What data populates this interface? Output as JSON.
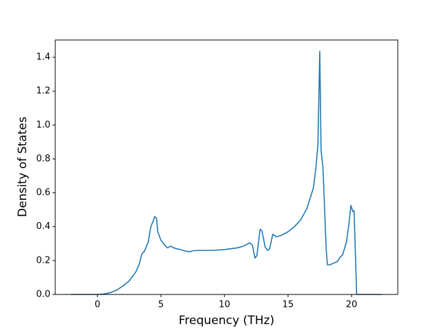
{
  "chart_data": {
    "type": "line",
    "x_label": "Frequency (THz)",
    "y_label": "Density of States",
    "x": [
      -2.1,
      0,
      0.5,
      1,
      1.5,
      2,
      2.5,
      3,
      3.3,
      3.5,
      3.7,
      4.0,
      4.2,
      4.4,
      4.5,
      4.65,
      4.75,
      5.0,
      5.3,
      5.5,
      5.8,
      6.0,
      6.5,
      7.0,
      7.3,
      7.5,
      8,
      9,
      10,
      11,
      11.5,
      12,
      12.2,
      12.4,
      12.55,
      12.8,
      12.95,
      13.2,
      13.4,
      13.55,
      13.8,
      14.1,
      14.5,
      15,
      15.5,
      16,
      16.5,
      17.0,
      17.2,
      17.35,
      17.5,
      17.6,
      17.75,
      18.0,
      18.1,
      18.3,
      18.6,
      18.9,
      19.1,
      19.3,
      19.6,
      19.8,
      19.95,
      20.1,
      20.2,
      20.4,
      21,
      22.4
    ],
    "series": [
      {
        "color": "#1f77b4",
        "values": [
          0,
          0,
          0.003,
          0.01,
          0.025,
          0.05,
          0.08,
          0.13,
          0.18,
          0.24,
          0.255,
          0.31,
          0.4,
          0.435,
          0.46,
          0.45,
          0.37,
          0.32,
          0.29,
          0.275,
          0.285,
          0.275,
          0.265,
          0.255,
          0.252,
          0.258,
          0.26,
          0.26,
          0.265,
          0.275,
          0.285,
          0.305,
          0.29,
          0.215,
          0.23,
          0.385,
          0.375,
          0.28,
          0.26,
          0.27,
          0.355,
          0.34,
          0.35,
          0.37,
          0.4,
          0.44,
          0.51,
          0.63,
          0.75,
          0.88,
          1.435,
          0.85,
          0.75,
          0.27,
          0.175,
          0.175,
          0.185,
          0.195,
          0.22,
          0.235,
          0.31,
          0.42,
          0.525,
          0.49,
          0.495,
          0,
          0,
          0
        ]
      }
    ],
    "xlim": [
      -3.32,
      23.64
    ],
    "ylim": [
      0,
      1.502
    ],
    "xticks": [
      0,
      5,
      10,
      15,
      20
    ],
    "yticks": [
      {
        "value": 0,
        "label": "0.0"
      },
      0.2,
      0.4,
      0.6,
      0.8,
      {
        "value": 1,
        "label": "1.0"
      },
      1.2,
      1.4
    ],
    "grid": false
  }
}
